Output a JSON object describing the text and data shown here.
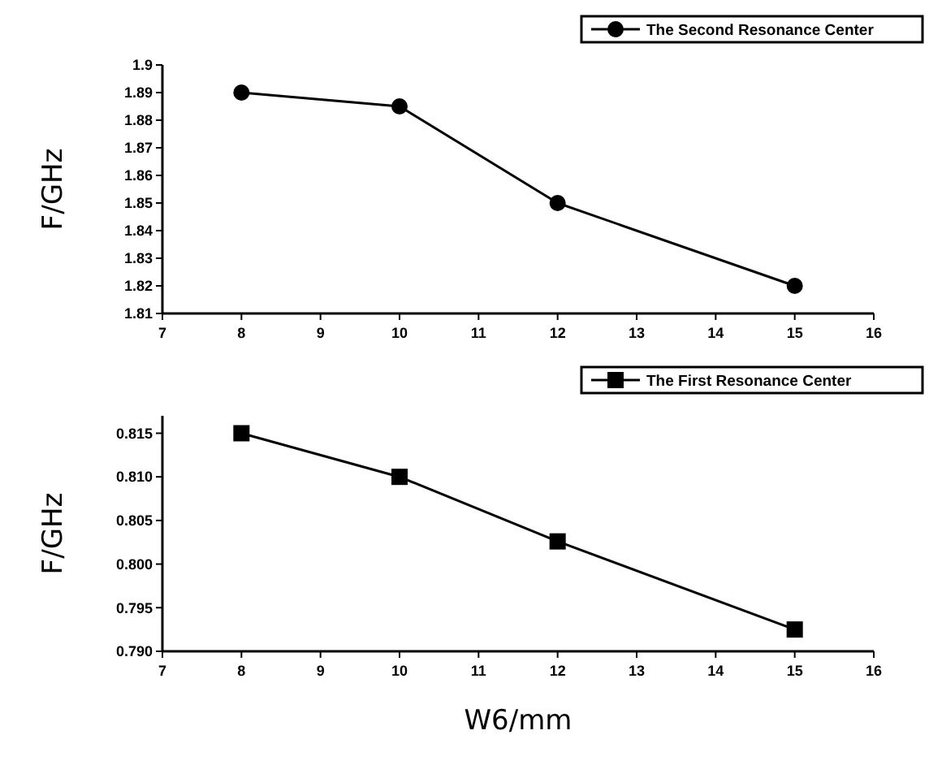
{
  "chart_data": [
    {
      "type": "line",
      "ylabel": "F/GHz",
      "x": [
        8,
        10,
        12,
        15
      ],
      "xlim": [
        7,
        16
      ],
      "xticks": [
        7,
        8,
        9,
        10,
        11,
        12,
        13,
        14,
        15,
        16
      ],
      "ylim": [
        1.81,
        1.9
      ],
      "yticks": [
        1.81,
        1.82,
        1.83,
        1.84,
        1.85,
        1.86,
        1.87,
        1.88,
        1.89,
        1.9
      ],
      "marker": "circle",
      "legend": "top right",
      "series": [
        {
          "name": "The Second Resonance Center",
          "color": "#000000",
          "values": [
            1.89,
            1.885,
            1.85,
            1.82
          ]
        }
      ]
    },
    {
      "type": "line",
      "ylabel": "F/GHz",
      "xlabel": "W6/mm",
      "x": [
        8,
        10,
        12,
        15
      ],
      "xlim": [
        7,
        16
      ],
      "xticks": [
        7,
        8,
        9,
        10,
        11,
        12,
        13,
        14,
        15,
        16
      ],
      "ylim": [
        0.79,
        0.817
      ],
      "yticks": [
        {
          "value": 0.79,
          "label": "0.790"
        },
        {
          "value": 0.795,
          "label": "0.795"
        },
        {
          "value": 0.8,
          "label": "0.800"
        },
        {
          "value": 0.805,
          "label": "0.805"
        },
        {
          "value": 0.81,
          "label": "0.810"
        },
        {
          "value": 0.815,
          "label": "0.815"
        }
      ],
      "marker": "square",
      "legend": "top right",
      "series": [
        {
          "name": "The First Resonance Center",
          "color": "#000000",
          "values": [
            0.815,
            0.81,
            0.8026,
            0.7925
          ]
        }
      ]
    }
  ]
}
